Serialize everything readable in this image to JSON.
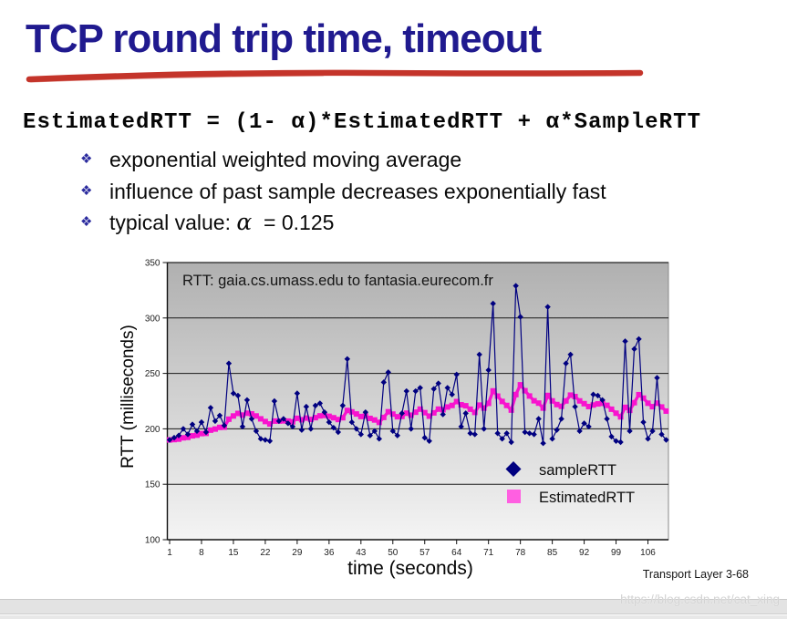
{
  "slide": {
    "title": "TCP round trip time, timeout",
    "formula": "EstimatedRTT = (1- α)*EstimatedRTT + α*SampleRTT",
    "bullets": [
      {
        "marker": "❖",
        "text": "exponential weighted moving average"
      },
      {
        "marker": "❖",
        "text": "influence of past sample decreases exponentially fast"
      },
      {
        "marker": "❖",
        "text_prefix": "typical value: ",
        "alpha": "α",
        "text_suffix": "  = 0.125"
      }
    ],
    "footer": "Transport Layer 3-68",
    "watermark": "https://blog.csdn.net/cat_xing"
  },
  "colors": {
    "title_navy": "#201a8f",
    "underline_red": "#c4342a",
    "bullet_marker_blue": "#2b2b9e",
    "sample_navy": "#000080",
    "estimated_magenta": "#f813ce",
    "estimated_legend_pink": "#ff5fe1",
    "plot_bg_top": "#b0b0b0",
    "plot_bg_bottom": "#f4f4f4",
    "gridline": "#1a1a1a"
  },
  "chart_data": {
    "type": "line",
    "title": "RTT: gaia.cs.umass.edu to fantasia.eurecom.fr",
    "xlabel": "time (seconds)",
    "ylabel": "RTT (milliseconds)",
    "ylim": [
      100,
      350
    ],
    "y_ticks": [
      100,
      150,
      200,
      250,
      300,
      350
    ],
    "y_gridlines": [
      150,
      200,
      250,
      300
    ],
    "x_ticks": [
      1,
      8,
      15,
      22,
      29,
      36,
      43,
      50,
      57,
      64,
      71,
      78,
      85,
      92,
      99,
      106
    ],
    "x_start": 1,
    "x_step": 1,
    "grid": "horizontal",
    "legend_position": "inside-bottom-right",
    "series": [
      {
        "name": "sampleRTT",
        "color": "#000080",
        "marker": "diamond",
        "values": [
          190,
          192,
          194,
          200,
          195,
          204,
          198,
          206,
          197,
          219,
          207,
          212,
          203,
          259,
          232,
          230,
          202,
          226,
          209,
          198,
          191,
          190,
          189,
          225,
          207,
          209,
          205,
          202,
          232,
          199,
          220,
          200,
          221,
          223,
          215,
          206,
          201,
          197,
          221,
          263,
          206,
          200,
          195,
          215,
          194,
          198,
          191,
          242,
          251,
          198,
          194,
          214,
          234,
          200,
          234,
          237,
          192,
          189,
          236,
          241,
          213,
          237,
          231,
          249,
          202,
          214,
          196,
          195,
          267,
          200,
          253,
          313,
          196,
          191,
          196,
          188,
          329,
          301,
          197,
          196,
          195,
          209,
          187,
          310,
          191,
          199,
          209,
          259,
          267,
          220,
          198,
          205,
          202,
          231,
          230,
          226,
          209,
          193,
          189,
          188,
          279,
          198,
          272,
          281,
          206,
          191,
          198,
          246,
          195,
          190
        ]
      },
      {
        "name": "EstimatedRTT",
        "color": "#f813ce",
        "marker": "square",
        "note": "EWMA of sampleRTT with alpha = 0.125",
        "values": [
          190.0,
          190.3,
          190.7,
          191.9,
          192.3,
          193.7,
          194.3,
          195.7,
          195.9,
          198.8,
          199.8,
          201.3,
          201.5,
          208.7,
          211.6,
          213.9,
          212.4,
          214.1,
          213.5,
          211.6,
          209.0,
          206.6,
          204.4,
          207.0,
          207.0,
          207.2,
          207.0,
          206.3,
          209.5,
          208.2,
          209.7,
          208.5,
          210.1,
          211.7,
          212.1,
          211.3,
          210.0,
          208.4,
          210.0,
          216.6,
          215.3,
          213.4,
          211.1,
          211.6,
          209.4,
          208.0,
          205.8,
          210.3,
          215.4,
          213.3,
          210.9,
          211.2,
          214.1,
          212.3,
          215.0,
          217.8,
          214.6,
          211.4,
          214.4,
          217.8,
          217.2,
          219.7,
          221.1,
          224.6,
          221.7,
          220.8,
          217.7,
          214.8,
          221.4,
          218.7,
          223.0,
          234.2,
          229.5,
          224.7,
          221.1,
          216.9,
          230.9,
          239.7,
          234.4,
          229.6,
          225.3,
          223.2,
          218.7,
          230.1,
          225.2,
          221.9,
          220.3,
          225.2,
          230.4,
          229.1,
          225.2,
          222.7,
          220.1,
          221.5,
          222.5,
          223.0,
          221.2,
          217.7,
          214.1,
          210.8,
          219.4,
          216.7,
          223.6,
          230.8,
          227.7,
          223.1,
          220.0,
          223.2,
          219.7,
          216.0
        ]
      }
    ]
  }
}
